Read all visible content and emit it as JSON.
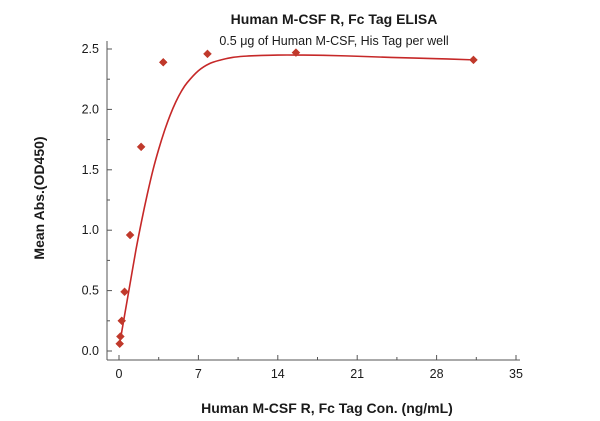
{
  "colors": {
    "series": "#c0392b",
    "curve": "#c62828",
    "axis": "#555555",
    "text": "#1a1a1a"
  },
  "chart_data": {
    "type": "scatter",
    "title": "Human M-CSF R, Fc Tag ELISA",
    "subtitle": "0.5 μg of Human M-CSF, His Tag per well",
    "xlabel": "Human M-CSF R, Fc Tag Con. (ng/mL)",
    "ylabel": "Mean Abs.(OD450)",
    "xlim": [
      0,
      35
    ],
    "ylim": [
      0,
      2.5
    ],
    "x_ticks": [
      "0",
      "7",
      "14",
      "21",
      "28",
      "35"
    ],
    "y_ticks": [
      "0.0",
      "0.5",
      "1.0",
      "1.5",
      "2.0",
      "2.5"
    ],
    "grid": false,
    "legend": "none",
    "series": [
      {
        "marker": "diamond",
        "x": [
          0.06,
          0.12,
          0.24,
          0.49,
          0.98,
          1.95,
          3.9,
          7.8,
          15.6,
          31.25
        ],
        "y": [
          0.06,
          0.12,
          0.25,
          0.49,
          0.96,
          1.69,
          2.39,
          2.46,
          2.47,
          2.41
        ]
      }
    ],
    "fit_curve": {
      "type": "four-parameter logistic",
      "x": [
        0.06,
        0.5,
        1,
        1.5,
        2,
        2.5,
        3,
        3.5,
        4,
        4.5,
        5,
        5.5,
        6,
        7,
        8,
        9,
        10,
        11,
        12,
        14,
        16,
        18,
        21,
        24,
        28,
        31.25
      ],
      "y": [
        0.06,
        0.3,
        0.57,
        0.84,
        1.08,
        1.3,
        1.5,
        1.67,
        1.82,
        1.95,
        2.06,
        2.15,
        2.22,
        2.32,
        2.38,
        2.41,
        2.43,
        2.44,
        2.445,
        2.45,
        2.45,
        2.448,
        2.44,
        2.43,
        2.42,
        2.41
      ]
    }
  }
}
